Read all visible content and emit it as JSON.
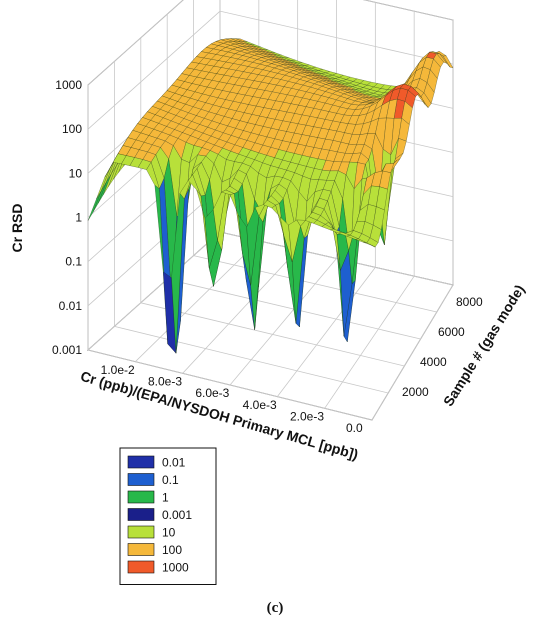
{
  "chart_data": {
    "type": "surface3d",
    "title": "",
    "z_axis": {
      "label": "Cr RSD",
      "scale": "log",
      "range": [
        0.001,
        1000
      ],
      "ticks": [
        "0.001",
        "0.01",
        "0.1",
        "1",
        "10",
        "100",
        "1000"
      ]
    },
    "x_axis": {
      "label": "Cr (ppb)/(EPA/NYSDOH Primary MCL [ppb])",
      "range": [
        0.0,
        0.012
      ],
      "ticks": [
        "1.0e-2",
        "8.0e-3",
        "6.0e-3",
        "4.0e-3",
        "2.0e-3",
        "0.0"
      ]
    },
    "y_axis": {
      "label": "Sample # (gas mode)",
      "range": [
        0,
        9000
      ],
      "ticks": [
        "2000",
        "4000",
        "6000",
        "8000"
      ]
    },
    "legend": {
      "placement": "bottom-left",
      "entries": [
        {
          "label": "0.01",
          "color": "#1f2fa8"
        },
        {
          "label": "0.1",
          "color": "#1e5fd0"
        },
        {
          "label": "1",
          "color": "#28b84a"
        },
        {
          "label": "0.001",
          "color": "#1a1f8a"
        },
        {
          "label": "10",
          "color": "#b8e03a"
        },
        {
          "label": "100",
          "color": "#f5b83a"
        },
        {
          "label": "1000",
          "color": "#f05a2a"
        }
      ]
    },
    "grid": true,
    "colormap": [
      "#1a1f8a",
      "#1f2fa8",
      "#1e5fd0",
      "#28b84a",
      "#b8e03a",
      "#f5b83a",
      "#f05a2a"
    ]
  },
  "caption": "(c)"
}
